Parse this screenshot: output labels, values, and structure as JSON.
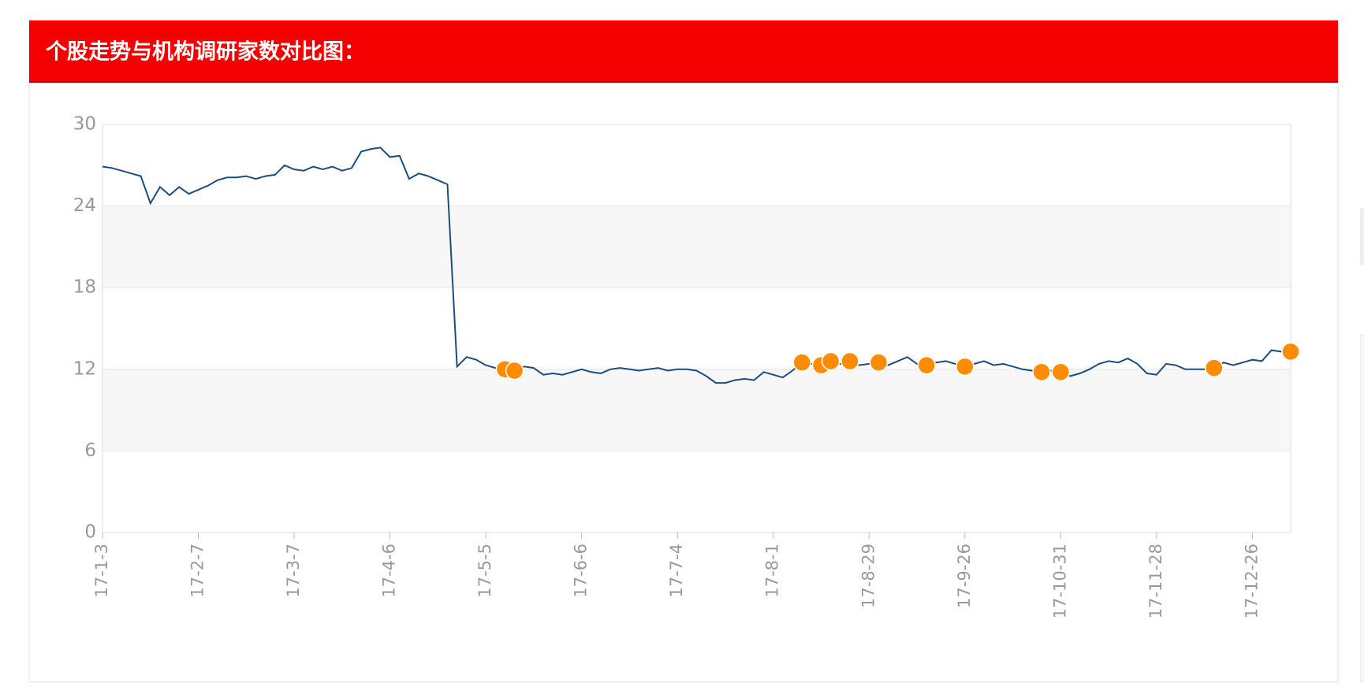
{
  "chart_data": {
    "type": "line",
    "title": "个股走势与机构调研家数对比图：",
    "categories": [
      "17-1-3",
      null,
      null,
      null,
      null,
      null,
      null,
      null,
      null,
      null,
      "17-2-7",
      null,
      null,
      null,
      null,
      null,
      null,
      null,
      null,
      null,
      "17-3-7",
      null,
      null,
      null,
      null,
      null,
      null,
      null,
      null,
      null,
      "17-4-6",
      null,
      null,
      null,
      null,
      null,
      null,
      null,
      null,
      null,
      "17-5-5",
      null,
      null,
      null,
      null,
      null,
      null,
      null,
      null,
      null,
      "17-6-6",
      null,
      null,
      null,
      null,
      null,
      null,
      null,
      null,
      null,
      "17-7-4",
      null,
      null,
      null,
      null,
      null,
      null,
      null,
      null,
      null,
      "17-8-1",
      null,
      null,
      null,
      null,
      null,
      null,
      null,
      null,
      null,
      "17-8-29",
      null,
      null,
      null,
      null,
      null,
      null,
      null,
      null,
      null,
      "17-9-26",
      null,
      null,
      null,
      null,
      null,
      null,
      null,
      null,
      null,
      "17-10-31",
      null,
      null,
      null,
      null,
      null,
      null,
      null,
      null,
      null,
      "17-11-28",
      null,
      null,
      null,
      null,
      null,
      null,
      null,
      null,
      null,
      "17-12-26",
      null,
      null,
      null,
      null
    ],
    "series": [
      {
        "color": "#1b4e7e",
        "values": [
          26.9,
          26.8,
          26.6,
          26.4,
          26.2,
          24.2,
          25.4,
          24.8,
          25.4,
          24.9,
          25.2,
          25.5,
          25.9,
          26.1,
          26.1,
          26.2,
          26.0,
          26.2,
          26.3,
          27.0,
          26.7,
          26.6,
          26.9,
          26.7,
          26.9,
          26.6,
          26.8,
          28.0,
          28.2,
          28.3,
          27.6,
          27.7,
          26.0,
          26.4,
          26.2,
          25.9,
          25.6,
          12.2,
          12.9,
          12.7,
          12.3,
          12.1,
          12.0,
          11.9,
          12.2,
          12.1,
          11.6,
          11.7,
          11.6,
          11.8,
          12.0,
          11.8,
          11.7,
          12.0,
          12.1,
          12.0,
          11.9,
          12.0,
          12.1,
          11.9,
          12.0,
          12.0,
          11.9,
          11.5,
          11.0,
          11.0,
          11.2,
          11.3,
          11.2,
          11.8,
          11.6,
          11.4,
          11.9,
          12.5,
          12.4,
          12.3,
          12.6,
          12.4,
          12.6,
          12.3,
          12.4,
          12.5,
          12.3,
          12.6,
          12.9,
          12.4,
          12.3,
          12.5,
          12.6,
          12.4,
          12.2,
          12.4,
          12.6,
          12.3,
          12.4,
          12.2,
          12.0,
          11.9,
          11.8,
          11.9,
          11.8,
          11.5,
          11.7,
          12.0,
          12.4,
          12.6,
          12.5,
          12.8,
          12.4,
          11.7,
          11.6,
          12.4,
          12.3,
          12.0,
          12.0,
          12.0,
          12.1,
          12.5,
          12.3,
          12.5,
          12.7,
          12.6,
          13.4,
          13.3,
          13.3
        ]
      },
      {
        "color": "#ff8c00",
        "type": "scatter",
        "values": [
          null,
          null,
          null,
          null,
          null,
          null,
          null,
          null,
          null,
          null,
          null,
          null,
          null,
          null,
          null,
          null,
          null,
          null,
          null,
          null,
          null,
          null,
          null,
          null,
          null,
          null,
          null,
          null,
          null,
          null,
          null,
          null,
          null,
          null,
          null,
          null,
          null,
          null,
          null,
          null,
          null,
          null,
          12.0,
          11.9,
          null,
          null,
          null,
          null,
          null,
          null,
          null,
          null,
          null,
          null,
          null,
          null,
          null,
          null,
          null,
          null,
          null,
          null,
          null,
          null,
          null,
          null,
          null,
          null,
          null,
          null,
          null,
          null,
          null,
          12.5,
          null,
          12.3,
          12.6,
          null,
          12.6,
          null,
          null,
          12.5,
          null,
          null,
          null,
          null,
          12.3,
          null,
          null,
          null,
          12.2,
          null,
          null,
          null,
          null,
          null,
          null,
          null,
          11.8,
          null,
          11.8,
          null,
          null,
          null,
          null,
          null,
          null,
          null,
          null,
          null,
          null,
          null,
          null,
          null,
          null,
          null,
          12.1,
          null,
          null,
          null,
          null,
          null,
          null,
          null,
          13.3
        ]
      }
    ],
    "ylim": [
      0,
      30
    ],
    "yticks": [
      0,
      6,
      12,
      18,
      24,
      30
    ],
    "grid": true
  }
}
